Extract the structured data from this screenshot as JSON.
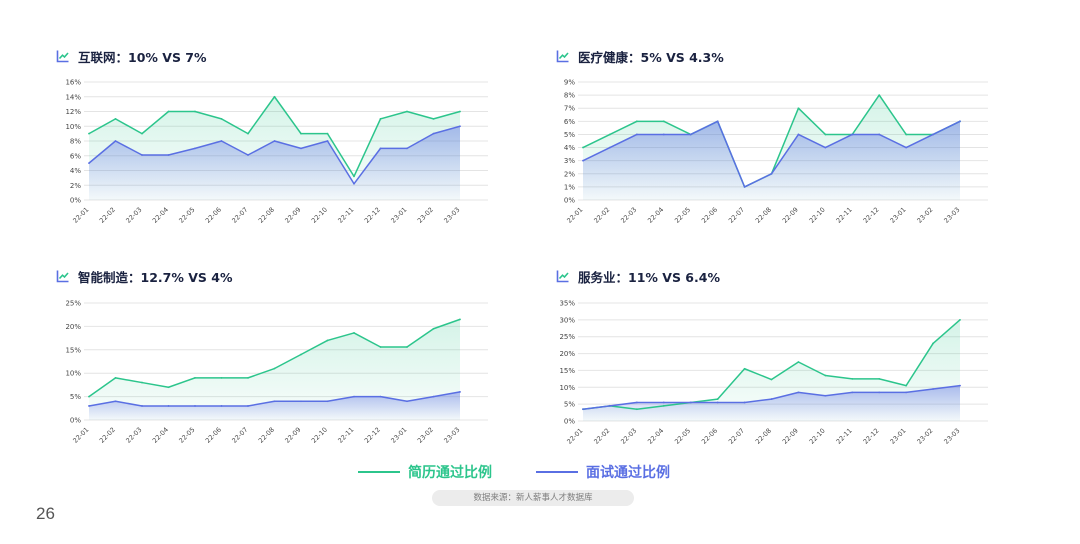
{
  "colors": {
    "resume": "#2cc58c",
    "interview": "#5a6fe3",
    "grid": "#e4e4e4",
    "text": "#1a2240"
  },
  "page_number": "26",
  "source": "数据来源：新人薪事人才数据库",
  "legend": {
    "resume": "简历通过比例",
    "interview": "面试通过比例"
  },
  "chart_data": [
    {
      "type": "area",
      "title": "互联网：10% VS 7%",
      "x": [
        "22-01",
        "22-02",
        "22-03",
        "22-04",
        "22-05",
        "22-06",
        "22-07",
        "22-08",
        "22-09",
        "22-10",
        "22-11",
        "22-12",
        "23-01",
        "23-02",
        "23-03"
      ],
      "ylim": [
        0,
        16
      ],
      "yticks": [
        0,
        2,
        4,
        6,
        8,
        10,
        12,
        14,
        16
      ],
      "series": [
        {
          "name": "简历通过比例",
          "values": [
            9,
            11,
            9,
            12,
            12,
            11,
            9,
            14,
            9,
            9,
            3.2,
            11,
            12,
            11,
            12
          ]
        },
        {
          "name": "面试通过比例",
          "values": [
            5,
            8,
            6.1,
            6.1,
            7,
            8,
            6.1,
            8,
            7,
            8,
            2.2,
            7,
            7,
            9,
            10
          ]
        }
      ]
    },
    {
      "type": "area",
      "title": "医疗健康：5% VS 4.3%",
      "x": [
        "22-01",
        "22-02",
        "22-03",
        "22-04",
        "22-05",
        "22-06",
        "22-07",
        "22-08",
        "22-09",
        "22-10",
        "22-11",
        "22-12",
        "23-01",
        "23-02",
        "23-03"
      ],
      "ylim": [
        0,
        9
      ],
      "yticks": [
        0,
        1,
        2,
        3,
        4,
        5,
        6,
        7,
        8,
        9
      ],
      "series": [
        {
          "name": "简历通过比例",
          "values": [
            4,
            5,
            6,
            6,
            5,
            6,
            1,
            2,
            7,
            5,
            5,
            8,
            5,
            5,
            6
          ]
        },
        {
          "name": "面试通过比例",
          "values": [
            3,
            4,
            5,
            5,
            5,
            6,
            1,
            2,
            5,
            4,
            5,
            5,
            4,
            5,
            6
          ]
        }
      ]
    },
    {
      "type": "area",
      "title": "智能制造：12.7% VS 4%",
      "x": [
        "22-01",
        "22-02",
        "22-03",
        "22-04",
        "22-05",
        "22-06",
        "22-07",
        "22-08",
        "22-09",
        "22-10",
        "22-11",
        "22-12",
        "23-01",
        "23-02",
        "23-03"
      ],
      "ylim": [
        0,
        25
      ],
      "yticks": [
        0,
        5,
        10,
        15,
        20,
        25
      ],
      "series": [
        {
          "name": "简历通过比例",
          "values": [
            5,
            9,
            8,
            7,
            9,
            9,
            9,
            11,
            14,
            17,
            18.6,
            15.6,
            15.6,
            19.5,
            21.5
          ]
        },
        {
          "name": "面试通过比例",
          "values": [
            3,
            4,
            3,
            3,
            3,
            3,
            3,
            4,
            4,
            4,
            5,
            5,
            4,
            5,
            6
          ]
        }
      ]
    },
    {
      "type": "area",
      "title": "服务业：11% VS 6.4%",
      "x": [
        "22-01",
        "22-02",
        "22-03",
        "22-04",
        "22-05",
        "22-06",
        "22-07",
        "22-08",
        "22-09",
        "22-10",
        "22-11",
        "22-12",
        "23-01",
        "23-02",
        "23-03"
      ],
      "ylim": [
        0,
        35
      ],
      "yticks": [
        0,
        5,
        10,
        15,
        20,
        25,
        30,
        35
      ],
      "series": [
        {
          "name": "简历通过比例",
          "values": [
            3.5,
            4.5,
            3.5,
            4.5,
            5.5,
            6.5,
            15.5,
            12.3,
            17.5,
            13.5,
            12.5,
            12.5,
            10.5,
            23,
            30
          ]
        },
        {
          "name": "面试通过比例",
          "values": [
            3.5,
            4.5,
            5.5,
            5.5,
            5.5,
            5.5,
            5.5,
            6.5,
            8.5,
            7.5,
            8.5,
            8.5,
            8.5,
            9.5,
            10.5
          ]
        }
      ]
    }
  ]
}
